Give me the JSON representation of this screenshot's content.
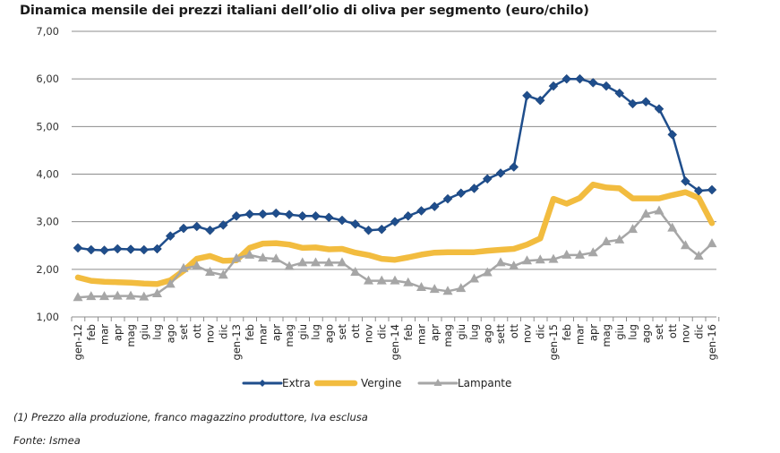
{
  "chart_data": {
    "type": "line",
    "title": "Dinamica mensile dei prezzi italiani dell’olio di oliva per segmento (euro/chilo)",
    "xlabel": "",
    "ylabel": "",
    "ylim": [
      1,
      7
    ],
    "yticks": [
      "1,00",
      "2,00",
      "3,00",
      "4,00",
      "5,00",
      "6,00",
      "7,00"
    ],
    "ytick_values": [
      1,
      2,
      3,
      4,
      5,
      6,
      7
    ],
    "grid": true,
    "legend_position": "bottom",
    "categories": [
      "gen-12",
      "feb",
      "mar",
      "apr",
      "mag",
      "giu",
      "lug",
      "ago",
      "set",
      "ott",
      "nov",
      "dic",
      "gen-13",
      "feb",
      "mar",
      "apr",
      "mag",
      "giu",
      "lug",
      "ago",
      "set",
      "ott",
      "nov",
      "dic",
      "gen-14",
      "feb",
      "mar",
      "apr",
      "mag",
      "giu",
      "lug",
      "ago",
      "sett",
      "ott",
      "nov",
      "dic",
      "gen-15",
      "feb",
      "mar",
      "apr",
      "mag",
      "giu",
      "lug",
      "ago",
      "set",
      "ott",
      "nov",
      "dic",
      "gen-16"
    ],
    "series": [
      {
        "name": "Extra",
        "color": "#1f4e8c",
        "marker": "diamond",
        "values": [
          2.45,
          2.41,
          2.4,
          2.43,
          2.42,
          2.41,
          2.43,
          2.7,
          2.86,
          2.9,
          2.82,
          2.93,
          3.12,
          3.16,
          3.16,
          3.18,
          3.15,
          3.12,
          3.12,
          3.09,
          3.03,
          2.95,
          2.82,
          2.84,
          3.0,
          3.12,
          3.23,
          3.32,
          3.48,
          3.6,
          3.7,
          3.9,
          4.02,
          4.15,
          5.65,
          5.55,
          5.85,
          6.0,
          6.0,
          5.92,
          5.85,
          5.7,
          5.48,
          5.52,
          5.37,
          4.83,
          3.85,
          3.65,
          3.67
        ]
      },
      {
        "name": "Vergine",
        "color": "#f2bc3f",
        "marker": "none",
        "values": [
          1.83,
          1.76,
          1.74,
          1.73,
          1.72,
          1.7,
          1.69,
          1.77,
          1.97,
          2.22,
          2.28,
          2.18,
          2.19,
          2.45,
          2.54,
          2.55,
          2.52,
          2.45,
          2.46,
          2.42,
          2.43,
          2.35,
          2.3,
          2.22,
          2.2,
          2.25,
          2.31,
          2.35,
          2.36,
          2.36,
          2.36,
          2.39,
          2.41,
          2.43,
          2.52,
          2.65,
          3.48,
          3.38,
          3.5,
          3.78,
          3.72,
          3.7,
          3.49,
          3.49,
          3.49,
          3.56,
          3.62,
          3.5,
          2.97
        ]
      },
      {
        "name": "Lampante",
        "color": "#a6a6a6",
        "marker": "triangle",
        "values": [
          1.41,
          1.43,
          1.43,
          1.44,
          1.44,
          1.42,
          1.49,
          1.69,
          2.02,
          2.07,
          1.94,
          1.88,
          2.23,
          2.3,
          2.24,
          2.22,
          2.06,
          2.14,
          2.14,
          2.14,
          2.14,
          1.94,
          1.76,
          1.76,
          1.76,
          1.72,
          1.62,
          1.58,
          1.54,
          1.6,
          1.8,
          1.93,
          2.14,
          2.07,
          2.18,
          2.2,
          2.21,
          2.3,
          2.3,
          2.35,
          2.58,
          2.62,
          2.84,
          3.16,
          3.23,
          2.87,
          2.5,
          2.28,
          2.54
        ]
      }
    ]
  },
  "footnotes": {
    "note1": "(1) Prezzo alla produzione, franco magazzino produttore, Iva esclusa",
    "source": "Fonte: Ismea"
  }
}
